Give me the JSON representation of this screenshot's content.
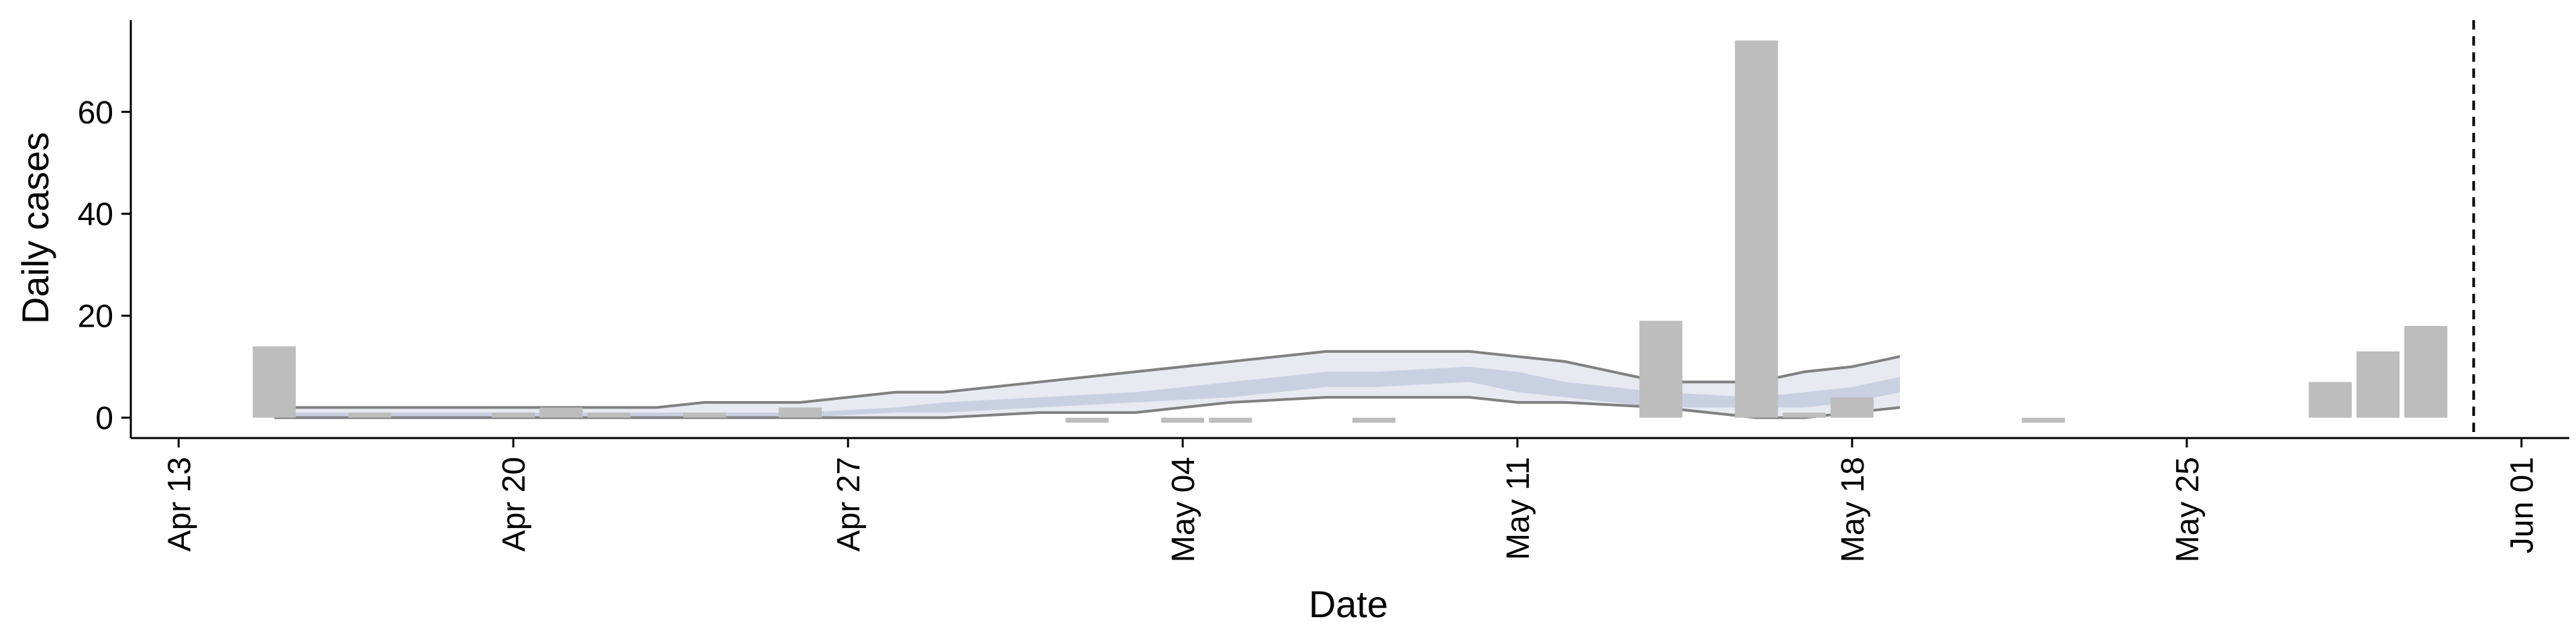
{
  "chart_data": {
    "type": "bar",
    "xlabel": "Date",
    "ylabel": "Daily cases",
    "x_range": [
      "2020-04-12",
      "2020-06-02"
    ],
    "ylim": [
      -4,
      78
    ],
    "x_ticks": [
      {
        "date": "2020-04-13",
        "label": "Apr 13"
      },
      {
        "date": "2020-04-20",
        "label": "Apr 20"
      },
      {
        "date": "2020-04-27",
        "label": "Apr 27"
      },
      {
        "date": "2020-05-04",
        "label": "May 04"
      },
      {
        "date": "2020-05-11",
        "label": "May 11"
      },
      {
        "date": "2020-05-18",
        "label": "May 18"
      },
      {
        "date": "2020-05-25",
        "label": "May 25"
      },
      {
        "date": "2020-06-01",
        "label": "Jun 01"
      }
    ],
    "y_ticks": [
      0,
      20,
      40,
      60
    ],
    "bars": [
      {
        "date": "2020-04-15",
        "value": 14
      },
      {
        "date": "2020-04-17",
        "value": 1
      },
      {
        "date": "2020-04-20",
        "value": 1
      },
      {
        "date": "2020-04-21",
        "value": 2
      },
      {
        "date": "2020-04-22",
        "value": 1
      },
      {
        "date": "2020-04-24",
        "value": 1
      },
      {
        "date": "2020-04-26",
        "value": 2
      },
      {
        "date": "2020-05-02",
        "value": -1
      },
      {
        "date": "2020-05-04",
        "value": -1
      },
      {
        "date": "2020-05-05",
        "value": -1
      },
      {
        "date": "2020-05-08",
        "value": -1
      },
      {
        "date": "2020-05-14",
        "value": 19
      },
      {
        "date": "2020-05-16",
        "value": 74
      },
      {
        "date": "2020-05-17",
        "value": 1
      },
      {
        "date": "2020-05-18",
        "value": 4
      },
      {
        "date": "2020-05-22",
        "value": -1
      },
      {
        "date": "2020-05-28",
        "value": 7
      },
      {
        "date": "2020-05-29",
        "value": 13
      },
      {
        "date": "2020-05-30",
        "value": 18
      }
    ],
    "band": {
      "dates": [
        "2020-04-15",
        "2020-04-17",
        "2020-04-19",
        "2020-04-21",
        "2020-04-23",
        "2020-04-24",
        "2020-04-26",
        "2020-04-28",
        "2020-04-29",
        "2020-05-01",
        "2020-05-03",
        "2020-05-05",
        "2020-05-07",
        "2020-05-08",
        "2020-05-10",
        "2020-05-11",
        "2020-05-12",
        "2020-05-14",
        "2020-05-16",
        "2020-05-17",
        "2020-05-18",
        "2020-05-19"
      ],
      "upper": [
        2,
        2,
        2,
        2,
        2,
        3,
        3,
        5,
        5,
        7,
        9,
        11,
        13,
        13,
        13,
        12,
        11,
        7,
        7,
        9,
        10,
        12
      ],
      "mid_high": [
        1,
        1,
        1,
        1,
        1,
        1,
        1,
        2,
        3,
        4,
        5,
        7,
        9,
        9,
        10,
        9,
        7,
        5,
        4,
        5,
        6,
        8
      ],
      "median": [
        0.5,
        0.5,
        0.5,
        0.5,
        0.5,
        0.5,
        1,
        1,
        2,
        3,
        4,
        6,
        8,
        8,
        9,
        7,
        6,
        4,
        3,
        4,
        5,
        7
      ],
      "mid_low": [
        0,
        0,
        0,
        0,
        0,
        0,
        0,
        1,
        1,
        2,
        3,
        4,
        6,
        6,
        7,
        5,
        4,
        2,
        2,
        2,
        3,
        5
      ],
      "lower": [
        0,
        0,
        0,
        0,
        0,
        0,
        0,
        0,
        0,
        1,
        1,
        3,
        4,
        4,
        4,
        3,
        3,
        2,
        0,
        0,
        1,
        2
      ]
    },
    "reference_line": {
      "date": "2020-05-31",
      "style": "dashed"
    },
    "colors": {
      "bars": "#bdbdbd",
      "band_outer": "#e8eaf2",
      "band_mid": "#c8d0e2",
      "band_edge": "#808080",
      "reference_line": "#000000"
    },
    "grid": false,
    "legend": "none"
  }
}
